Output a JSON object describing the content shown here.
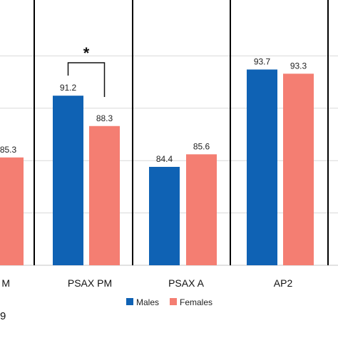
{
  "chart_data": {
    "type": "bar",
    "categories": [
      "…M",
      "PSAX PM",
      "PSAX A",
      "AP2"
    ],
    "visible_category_labels": [
      "M",
      "PSAX PM",
      "PSAX A",
      "AP2"
    ],
    "series": [
      {
        "name": "Males",
        "values": [
          null,
          91.2,
          84.4,
          93.7
        ],
        "labels": [
          "",
          "91.2",
          "84.4",
          "93.7"
        ]
      },
      {
        "name": "Females",
        "values": [
          85.3,
          88.3,
          85.6,
          93.3
        ],
        "labels": [
          "85.3",
          "88.3",
          "85.6",
          "93.3"
        ]
      }
    ],
    "ylim": [
      75,
      100
    ],
    "grid": true,
    "legend": {
      "position": "bottom",
      "entries": [
        "Males",
        "Females"
      ]
    },
    "significance": {
      "category": "PSAX PM",
      "marker": "*"
    },
    "colors": {
      "Males": "#0f62b4",
      "Females": "#f47e72",
      "grid": "#d9d9d9",
      "divider": "#000000"
    },
    "cropped_text": "9"
  }
}
